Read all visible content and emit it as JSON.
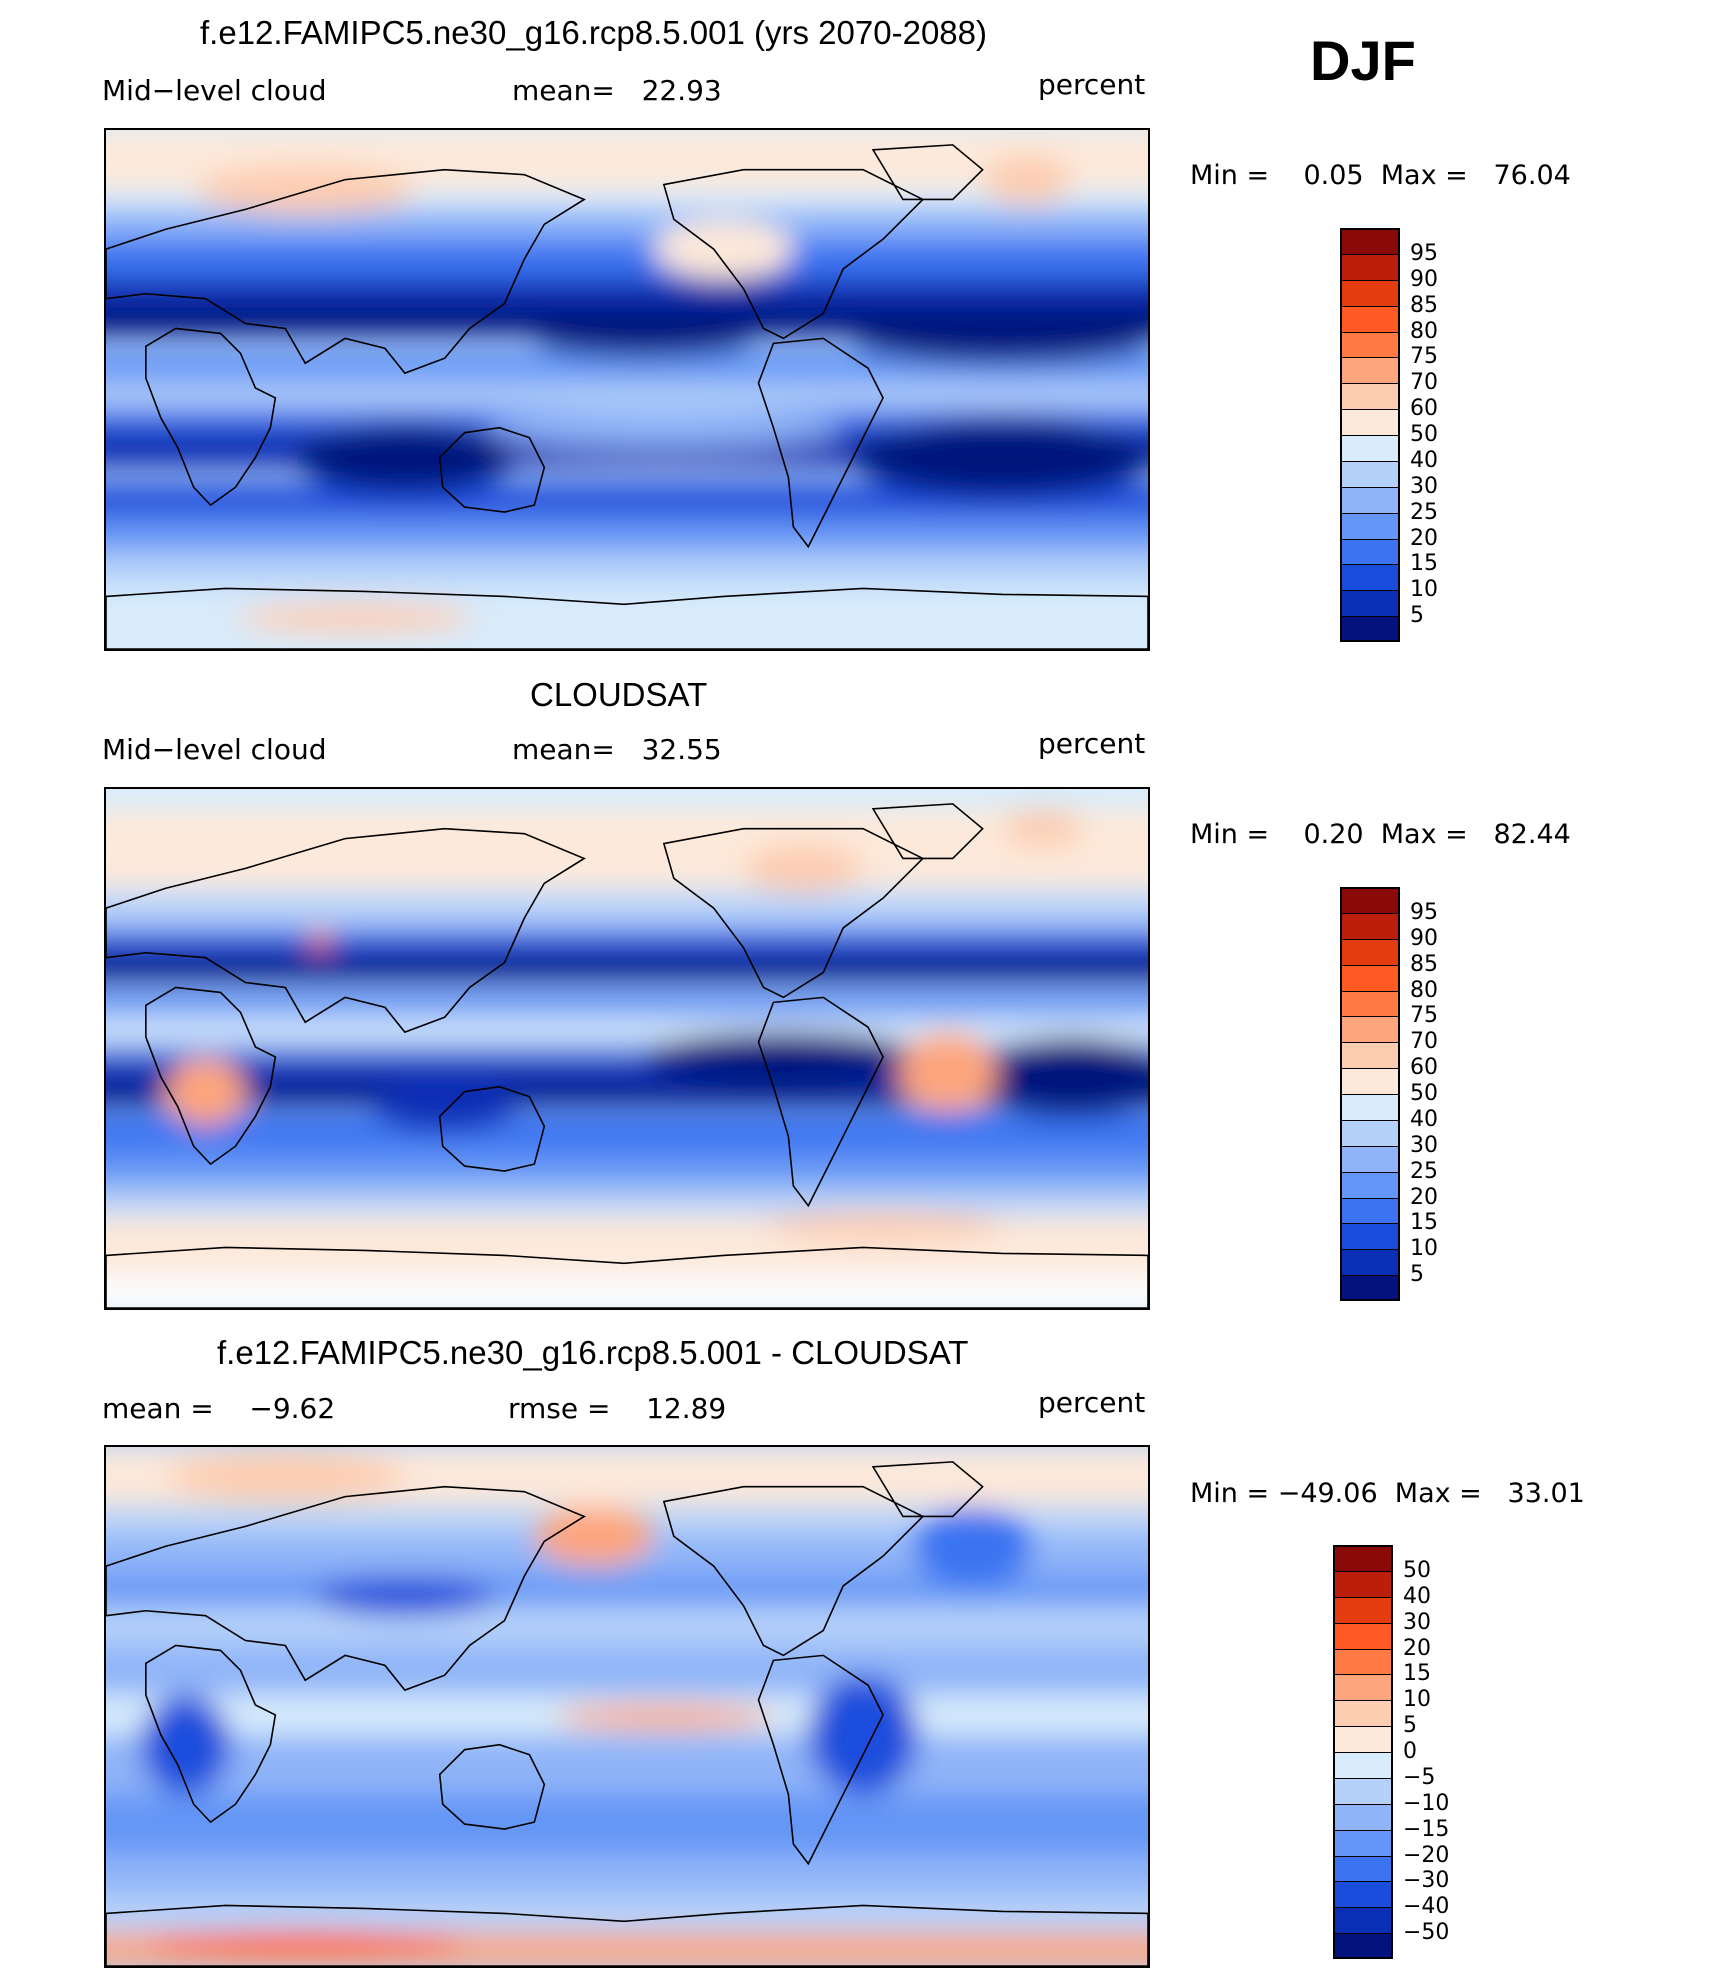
{
  "season": "DJF",
  "panels": [
    {
      "title": "f.e12.FAMIPC5.ne30_g16.rcp8.5.001 (yrs 2070-2088)",
      "left_label": "Mid−level cloud",
      "center_label": "mean=   22.93",
      "units": "percent",
      "minmax": "Min =    0.05  Max =   76.04",
      "colorbar": {
        "labels": [
          "95",
          "90",
          "85",
          "80",
          "75",
          "70",
          "60",
          "50",
          "40",
          "30",
          "25",
          "20",
          "15",
          "10",
          "5"
        ],
        "colors": [
          "#8a0a0a",
          "#bb1e0b",
          "#e23c10",
          "#ff5a23",
          "#ff7a45",
          "#fda57d",
          "#fdcdb1",
          "#fde9da",
          "#d8ecfb",
          "#b5d1f9",
          "#8fb4f8",
          "#6396f6",
          "#3b73f1",
          "#1b4ddc",
          "#0b2fb4",
          "#04127d"
        ]
      },
      "map_style": "model"
    },
    {
      "title": "CLOUDSAT",
      "left_label": "Mid−level cloud",
      "center_label": "mean=   32.55",
      "units": "percent",
      "minmax": "Min =    0.20  Max =   82.44",
      "colorbar": {
        "labels": [
          "95",
          "90",
          "85",
          "80",
          "75",
          "70",
          "60",
          "50",
          "40",
          "30",
          "25",
          "20",
          "15",
          "10",
          "5"
        ],
        "colors": [
          "#8a0a0a",
          "#bb1e0b",
          "#e23c10",
          "#ff5a23",
          "#ff7a45",
          "#fda57d",
          "#fdcdb1",
          "#fde9da",
          "#d8ecfb",
          "#b5d1f9",
          "#8fb4f8",
          "#6396f6",
          "#3b73f1",
          "#1b4ddc",
          "#0b2fb4",
          "#04127d"
        ]
      },
      "map_style": "obs"
    },
    {
      "title": "f.e12.FAMIPC5.ne30_g16.rcp8.5.001 - CLOUDSAT",
      "left_label": "mean =    −9.62",
      "center_label": "rmse =    12.89",
      "units": "percent",
      "minmax": "Min = −49.06  Max =   33.01",
      "colorbar": {
        "labels": [
          "50",
          "40",
          "30",
          "20",
          "15",
          "10",
          "5",
          "0",
          "−5",
          "−10",
          "−15",
          "−20",
          "−30",
          "−40",
          "−50"
        ],
        "colors": [
          "#8a0a0a",
          "#bb1e0b",
          "#e23c10",
          "#ff5a23",
          "#ff7a45",
          "#fda57d",
          "#fdcdb1",
          "#fde9da",
          "#d8ecfb",
          "#b5d1f9",
          "#8fb4f8",
          "#6396f6",
          "#3b73f1",
          "#1b4ddc",
          "#0b2fb4",
          "#04127d"
        ]
      },
      "map_style": "diff"
    }
  ]
}
